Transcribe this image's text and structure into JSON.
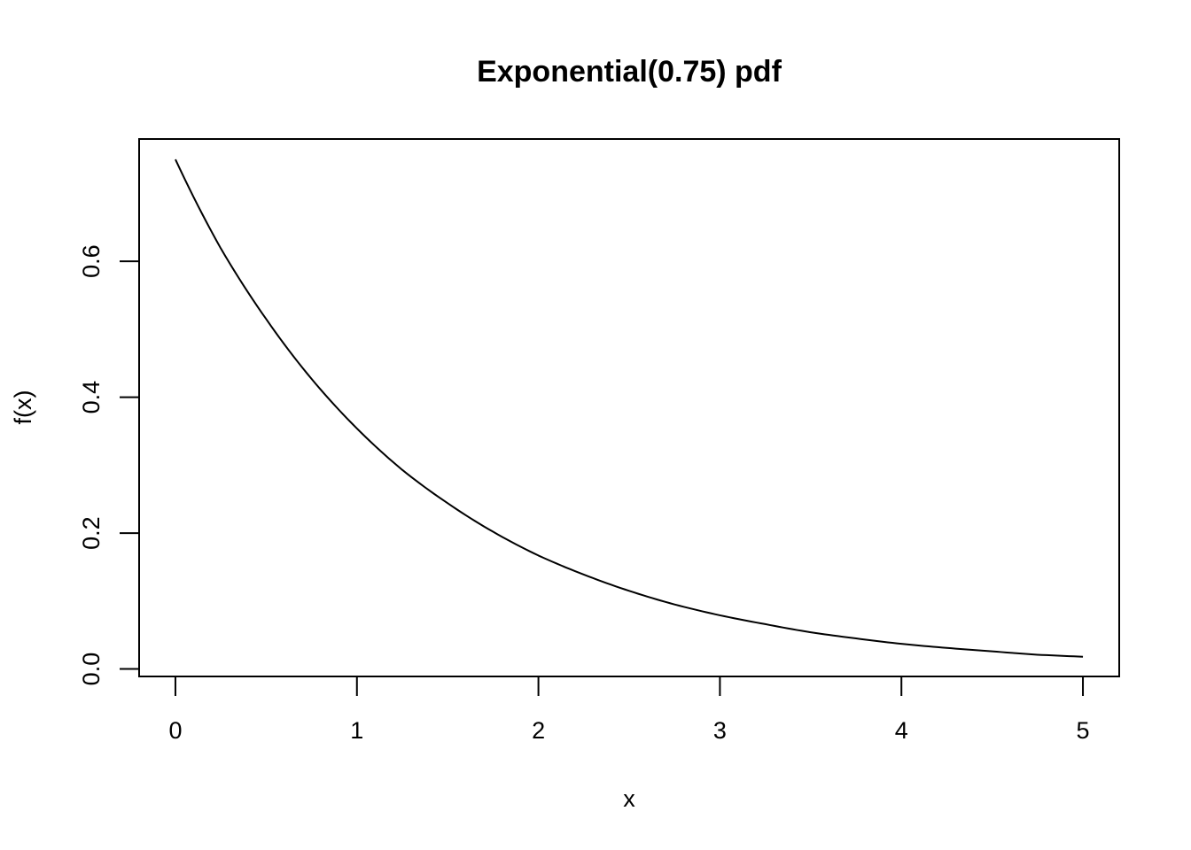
{
  "chart_data": {
    "type": "line",
    "title": "Exponential(0.75) pdf",
    "xlabel": "x",
    "ylabel": "f(x)",
    "xlim": [
      -0.2,
      5.2
    ],
    "ylim": [
      -0.011,
      0.78
    ],
    "x_ticks": [
      0,
      1,
      2,
      3,
      4,
      5
    ],
    "x_tick_labels": [
      "0",
      "1",
      "2",
      "3",
      "4",
      "5"
    ],
    "y_ticks": [
      0.0,
      0.2,
      0.4,
      0.6
    ],
    "y_tick_labels": [
      "0.0",
      "0.2",
      "0.4",
      "0.6"
    ],
    "grid": false,
    "series": [
      {
        "color": "#000000",
        "x": [
          0,
          0.25,
          0.5,
          0.75,
          1,
          1.25,
          1.5,
          1.75,
          2,
          2.25,
          2.5,
          2.75,
          3,
          3.25,
          3.5,
          3.75,
          4,
          4.25,
          4.5,
          4.75,
          5
        ],
        "y": [
          0.75,
          0.619,
          0.515,
          0.427,
          0.354,
          0.293,
          0.244,
          0.202,
          0.167,
          0.139,
          0.115,
          0.095,
          0.079,
          0.066,
          0.054,
          0.045,
          0.037,
          0.031,
          0.026,
          0.021,
          0.018
        ]
      }
    ]
  }
}
